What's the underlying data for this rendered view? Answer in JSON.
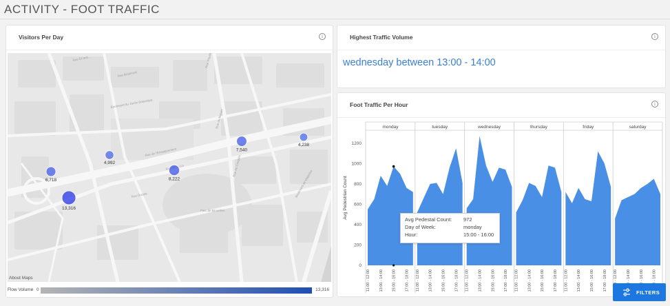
{
  "page": {
    "title": "ACTIVITY - FOOT TRAFFIC"
  },
  "visitors": {
    "title": "Visitors Per Day",
    "info_icon": "i",
    "about_maps": "About Maps",
    "flow_label": "Flow Volume",
    "flow_min": "0",
    "flow_max": "13,316",
    "streets": [
      "Rue Ernest...",
      "Rue Brialmont",
      "Rue Royale",
      "Boulevard du Jardin Botanique",
      "Rue du Marais",
      "Rue de l'Enseignement",
      "Rue du Congrès",
      "Rue de la Loi",
      "Rue Ducale",
      "Parc de Bruxelles",
      "Boulevard de Waterloo"
    ],
    "points": [
      {
        "label": "6,718",
        "value": 6718
      },
      {
        "label": "13,316",
        "value": 13316
      },
      {
        "label": "4,992",
        "value": 4992
      },
      {
        "label": "8,222",
        "value": 8222
      },
      {
        "label": "7,540",
        "value": 7540
      },
      {
        "label": "4,238",
        "value": 4238
      }
    ]
  },
  "highest": {
    "title": "Highest Traffic Volume",
    "info_icon": "i",
    "value": "wednesday between 13:00 - 14:00"
  },
  "foot": {
    "title": "Foot Traffic Per Hour",
    "info_icon": "i"
  },
  "tooltip": {
    "rows": [
      {
        "key": "Avg Pedestal Count:",
        "value": "972"
      },
      {
        "key": "Day of Week:",
        "value": "monday"
      },
      {
        "key": "Hour:",
        "value": "15:00 - 16:00"
      }
    ]
  },
  "filters_button": {
    "label": "FILTERS",
    "icon": "sliders-icon"
  },
  "colors": {
    "accent": "#1d77e0",
    "area": "#4a8fe6",
    "highlight_text": "#3a7fd5"
  },
  "chart_data": {
    "type": "area",
    "ylabel": "Avg Pedestrian Count",
    "ylim": [
      0,
      1300
    ],
    "yticks": [
      0,
      200,
      400,
      600,
      800,
      1000,
      1200
    ],
    "hours": [
      "11:00 - 12:00",
      "12:00 - 13:00",
      "13:00 - 14:00",
      "14:00 - 15:00",
      "15:00 - 16:00",
      "16:00 - 17:00",
      "17:00 - 18:00",
      "18:00 - 19:00"
    ],
    "xticks": [
      "11:00 - 12:00",
      "13:00 - 14:00",
      "15:00 - 16:00",
      "17:00 - 18:00"
    ],
    "series": [
      {
        "name": "monday",
        "values": [
          550,
          650,
          880,
          780,
          972,
          900,
          760,
          720
        ]
      },
      {
        "name": "tuesday",
        "values": [
          520,
          660,
          800,
          810,
          700,
          960,
          1150,
          810
        ]
      },
      {
        "name": "wednesday",
        "values": [
          560,
          650,
          1270,
          980,
          820,
          960,
          940,
          770
        ]
      },
      {
        "name": "thursday",
        "values": [
          520,
          640,
          810,
          780,
          670,
          980,
          960,
          720
        ]
      },
      {
        "name": "friday",
        "values": [
          720,
          610,
          760,
          650,
          630,
          1120,
          1000,
          770
        ]
      },
      {
        "name": "saturday",
        "values": [
          460,
          640,
          670,
          700,
          760,
          800,
          850,
          700
        ]
      }
    ]
  }
}
